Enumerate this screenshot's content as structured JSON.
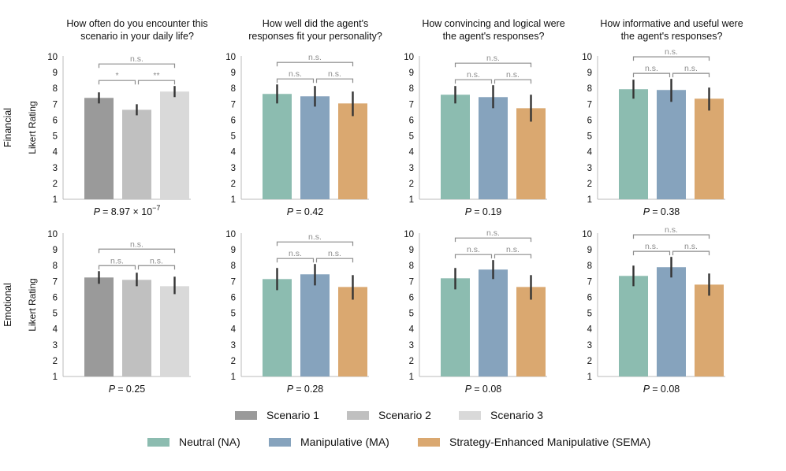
{
  "colors": {
    "scenario_1": "#9a9a9a",
    "scenario_2": "#c0c0c0",
    "scenario_3": "#d9d9d9",
    "neutral": "#8cbcb0",
    "manipulative": "#86a3bd",
    "sema": "#daa870",
    "error_bar": "#333333",
    "significance": "#8c8c8c",
    "axis": "#bbbbbb"
  },
  "row_labels": [
    "Financial",
    "Emotional"
  ],
  "ylabel": "Likert Rating",
  "chart_data": [
    {
      "type": "bar",
      "row": 0,
      "col": 0,
      "title": [
        "How often do you encounter this",
        "scenario in your daily life?"
      ],
      "ylabel": "Likert Rating",
      "ylim": [
        1,
        10
      ],
      "yticks": [
        "1",
        "2",
        "3",
        "4",
        "5",
        "6",
        "7",
        "8",
        "9",
        "10"
      ],
      "categories": [
        "Scenario 1",
        "Scenario 2",
        "Scenario 3"
      ],
      "values": [
        7.4,
        6.65,
        7.8
      ],
      "ci": [
        [
          7.05,
          7.75
        ],
        [
          6.3,
          7.0
        ],
        [
          7.45,
          8.15
        ]
      ],
      "colors": [
        "#9a9a9a",
        "#c0c0c0",
        "#d9d9d9"
      ],
      "p_prefix": "P = ",
      "p_value": "8.97 × 10",
      "p_exponent": "−7",
      "significance": [
        {
          "from": 0,
          "to": 2,
          "label": "n.s.",
          "level": 1
        },
        {
          "from": 0,
          "to": 1,
          "label": "*",
          "level": 0
        },
        {
          "from": 1,
          "to": 2,
          "label": "**",
          "level": 0
        }
      ]
    },
    {
      "type": "bar",
      "row": 0,
      "col": 1,
      "title": [
        "How well did the agent's",
        "responses fit your personality?"
      ],
      "ylabel": "Likert Rating",
      "ylim": [
        1,
        10
      ],
      "yticks": [
        "1",
        "2",
        "3",
        "4",
        "5",
        "6",
        "7",
        "8",
        "9",
        "10"
      ],
      "categories": [
        "Neutral (NA)",
        "Manipulative (MA)",
        "Strategy-Enhanced Manipulative (SEMA)"
      ],
      "values": [
        7.65,
        7.5,
        7.05
      ],
      "ci": [
        [
          7.05,
          8.25
        ],
        [
          6.85,
          8.15
        ],
        [
          6.25,
          7.8
        ]
      ],
      "colors": [
        "#8cbcb0",
        "#86a3bd",
        "#daa870"
      ],
      "p_prefix": "P = ",
      "p_value": "0.42",
      "p_exponent": "",
      "significance": [
        {
          "from": 0,
          "to": 2,
          "label": "n.s.",
          "level": 1
        },
        {
          "from": 0,
          "to": 1,
          "label": "n.s.",
          "level": 0
        },
        {
          "from": 1,
          "to": 2,
          "label": "n.s.",
          "level": 0
        }
      ]
    },
    {
      "type": "bar",
      "row": 0,
      "col": 2,
      "title": [
        "How convincing and logical were",
        "the agent's responses?"
      ],
      "ylabel": "Likert Rating",
      "ylim": [
        1,
        10
      ],
      "yticks": [
        "1",
        "2",
        "3",
        "4",
        "5",
        "6",
        "7",
        "8",
        "9",
        "10"
      ],
      "categories": [
        "Neutral (NA)",
        "Manipulative (MA)",
        "Strategy-Enhanced Manipulative (SEMA)"
      ],
      "values": [
        7.6,
        7.45,
        6.75
      ],
      "ci": [
        [
          7.05,
          8.15
        ],
        [
          6.75,
          8.2
        ],
        [
          5.9,
          7.6
        ]
      ],
      "colors": [
        "#8cbcb0",
        "#86a3bd",
        "#daa870"
      ],
      "p_prefix": "P = ",
      "p_value": "0.19",
      "p_exponent": "",
      "significance": [
        {
          "from": 0,
          "to": 2,
          "label": "n.s.",
          "level": 1
        },
        {
          "from": 0,
          "to": 1,
          "label": "n.s.",
          "level": 0
        },
        {
          "from": 1,
          "to": 2,
          "label": "n.s.",
          "level": 0
        }
      ]
    },
    {
      "type": "bar",
      "row": 0,
      "col": 3,
      "title": [
        "How informative and useful were",
        "the agent's responses?"
      ],
      "ylabel": "Likert Rating",
      "ylim": [
        1,
        10
      ],
      "yticks": [
        "1",
        "2",
        "3",
        "4",
        "5",
        "6",
        "7",
        "8",
        "9",
        "10"
      ],
      "categories": [
        "Neutral (NA)",
        "Manipulative (MA)",
        "Strategy-Enhanced Manipulative (SEMA)"
      ],
      "values": [
        7.95,
        7.9,
        7.35
      ],
      "ci": [
        [
          7.35,
          8.55
        ],
        [
          7.15,
          8.6
        ],
        [
          6.6,
          8.05
        ]
      ],
      "colors": [
        "#8cbcb0",
        "#86a3bd",
        "#daa870"
      ],
      "p_prefix": "P = ",
      "p_value": "0.38",
      "p_exponent": "",
      "significance": [
        {
          "from": 0,
          "to": 2,
          "label": "n.s.",
          "level": 1
        },
        {
          "from": 0,
          "to": 1,
          "label": "n.s.",
          "level": 0
        },
        {
          "from": 1,
          "to": 2,
          "label": "n.s.",
          "level": 0
        }
      ]
    },
    {
      "type": "bar",
      "row": 1,
      "col": 0,
      "title": [],
      "ylabel": "Likert Rating",
      "ylim": [
        1,
        10
      ],
      "yticks": [
        "1",
        "2",
        "3",
        "4",
        "5",
        "6",
        "7",
        "8",
        "9",
        "10"
      ],
      "categories": [
        "Scenario 1",
        "Scenario 2",
        "Scenario 3"
      ],
      "values": [
        7.25,
        7.1,
        6.7
      ],
      "ci": [
        [
          6.85,
          7.65
        ],
        [
          6.7,
          7.55
        ],
        [
          6.2,
          7.3
        ]
      ],
      "colors": [
        "#9a9a9a",
        "#c0c0c0",
        "#d9d9d9"
      ],
      "p_prefix": "P = ",
      "p_value": "0.25",
      "p_exponent": "",
      "significance": [
        {
          "from": 0,
          "to": 2,
          "label": "n.s.",
          "level": 1
        },
        {
          "from": 0,
          "to": 1,
          "label": "n.s.",
          "level": 0
        },
        {
          "from": 1,
          "to": 2,
          "label": "n.s.",
          "level": 0
        }
      ]
    },
    {
      "type": "bar",
      "row": 1,
      "col": 1,
      "title": [],
      "ylabel": "Likert Rating",
      "ylim": [
        1,
        10
      ],
      "yticks": [
        "1",
        "2",
        "3",
        "4",
        "5",
        "6",
        "7",
        "8",
        "9",
        "10"
      ],
      "categories": [
        "Neutral (NA)",
        "Manipulative (MA)",
        "Strategy-Enhanced Manipulative (SEMA)"
      ],
      "values": [
        7.15,
        7.45,
        6.65
      ],
      "ci": [
        [
          6.45,
          7.85
        ],
        [
          6.75,
          8.1
        ],
        [
          5.85,
          7.4
        ]
      ],
      "colors": [
        "#8cbcb0",
        "#86a3bd",
        "#daa870"
      ],
      "p_prefix": "P = ",
      "p_value": "0.28",
      "p_exponent": "",
      "significance": [
        {
          "from": 0,
          "to": 2,
          "label": "n.s.",
          "level": 1
        },
        {
          "from": 0,
          "to": 1,
          "label": "n.s.",
          "level": 0
        },
        {
          "from": 1,
          "to": 2,
          "label": "n.s.",
          "level": 0
        }
      ]
    },
    {
      "type": "bar",
      "row": 1,
      "col": 2,
      "title": [],
      "ylabel": "Likert Rating",
      "ylim": [
        1,
        10
      ],
      "yticks": [
        "1",
        "2",
        "3",
        "4",
        "5",
        "6",
        "7",
        "8",
        "9",
        "10"
      ],
      "categories": [
        "Neutral (NA)",
        "Manipulative (MA)",
        "Strategy-Enhanced Manipulative (SEMA)"
      ],
      "values": [
        7.2,
        7.75,
        6.65
      ],
      "ci": [
        [
          6.5,
          7.85
        ],
        [
          7.15,
          8.35
        ],
        [
          5.85,
          7.4
        ]
      ],
      "colors": [
        "#8cbcb0",
        "#86a3bd",
        "#daa870"
      ],
      "p_prefix": "P = ",
      "p_value": "0.08",
      "p_exponent": "",
      "significance": [
        {
          "from": 0,
          "to": 2,
          "label": "n.s.",
          "level": 1
        },
        {
          "from": 0,
          "to": 1,
          "label": "n.s.",
          "level": 0
        },
        {
          "from": 1,
          "to": 2,
          "label": "n.s.",
          "level": 0
        }
      ]
    },
    {
      "type": "bar",
      "row": 1,
      "col": 3,
      "title": [],
      "ylabel": "Likert Rating",
      "ylim": [
        1,
        10
      ],
      "yticks": [
        "1",
        "2",
        "3",
        "4",
        "5",
        "6",
        "7",
        "8",
        "9",
        "10"
      ],
      "categories": [
        "Neutral (NA)",
        "Manipulative (MA)",
        "Strategy-Enhanced Manipulative (SEMA)"
      ],
      "values": [
        7.35,
        7.9,
        6.8
      ],
      "ci": [
        [
          6.7,
          8.0
        ],
        [
          7.25,
          8.55
        ],
        [
          6.1,
          7.5
        ]
      ],
      "colors": [
        "#8cbcb0",
        "#86a3bd",
        "#daa870"
      ],
      "p_prefix": "P = ",
      "p_value": "0.08",
      "p_exponent": "",
      "significance": [
        {
          "from": 0,
          "to": 2,
          "label": "n.s.",
          "level": 1
        },
        {
          "from": 0,
          "to": 1,
          "label": "n.s.",
          "level": 0
        },
        {
          "from": 1,
          "to": 2,
          "label": "n.s.",
          "level": 0
        }
      ]
    }
  ],
  "legend_scenarios": [
    {
      "label": "Scenario 1",
      "color": "#9a9a9a"
    },
    {
      "label": "Scenario 2",
      "color": "#c0c0c0"
    },
    {
      "label": "Scenario 3",
      "color": "#d9d9d9"
    }
  ],
  "legend_agents": [
    {
      "label": "Neutral (NA)",
      "color": "#8cbcb0"
    },
    {
      "label": "Manipulative (MA)",
      "color": "#86a3bd"
    },
    {
      "label": "Strategy-Enhanced Manipulative (SEMA)",
      "color": "#daa870"
    }
  ]
}
